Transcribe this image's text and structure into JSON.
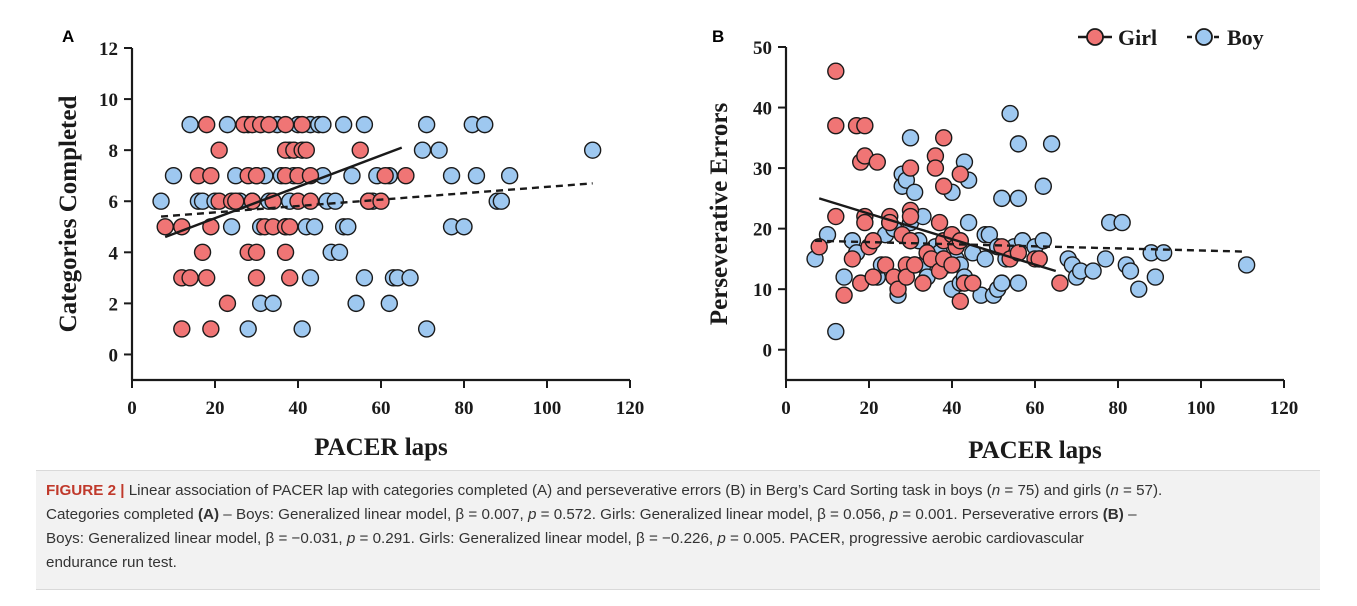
{
  "colors": {
    "girl": "#f07575",
    "boy": "#9ec8f0",
    "stroke": "#1a1a1a",
    "caption_prefix": "#c0392b"
  },
  "legend": {
    "girl_label": "Girl",
    "boy_label": "Boy"
  },
  "caption": {
    "prefix": "FIGURE 2 |",
    "seg1": " Linear association of PACER lap with categories completed (A) and perseverative errors (B) in Berg’s Card Sorting task in boys (",
    "n_boys_var": "n",
    "n_boys_val": " = 75) and girls (",
    "n_girls_var": "n",
    "n_girls_val": " = 57).",
    "seg2": "Categories completed ",
    "seg2_bold": "(A)",
    "seg3": " – Boys: Generalized linear model, β = 0.007, ",
    "p1": "p",
    "seg4": " = 0.572. Girls: Generalized linear model, β = 0.056, ",
    "p2": "p",
    "seg5": " = 0.001. Perseverative errors ",
    "seg5_bold": "(B)",
    "seg6": " –",
    "seg7": "Boys: Generalized linear model, β = −0.031, ",
    "p3": "p",
    "seg8": " = 0.291. Girls: Generalized linear model, β = −0.226, ",
    "p4": "p",
    "seg9": " = 0.005. PACER, progressive aerobic cardiovascular",
    "seg10": "endurance run test."
  },
  "chart_data": [
    {
      "type": "scatter",
      "panel_label": "A",
      "xlabel": "PACER laps",
      "ylabel": "Categories Completed",
      "xlim": [
        0,
        120
      ],
      "ylim": [
        -1,
        12
      ],
      "xticks": [
        "0",
        "20",
        "40",
        "60",
        "80",
        "100",
        "120"
      ],
      "yticks": [
        "0",
        "2",
        "4",
        "6",
        "8",
        "10",
        "12"
      ],
      "series": [
        {
          "name": "Boy",
          "trend": "dashed",
          "trend_line": [
            [
              7,
              5.4
            ],
            [
              111,
              6.7
            ]
          ],
          "points": [
            [
              7,
              6
            ],
            [
              10,
              7
            ],
            [
              14,
              9
            ],
            [
              16,
              6
            ],
            [
              17,
              6
            ],
            [
              20,
              6
            ],
            [
              23,
              9
            ],
            [
              24,
              5
            ],
            [
              25,
              7
            ],
            [
              26,
              6
            ],
            [
              28,
              1
            ],
            [
              28,
              9
            ],
            [
              29,
              6
            ],
            [
              30,
              7
            ],
            [
              31,
              5
            ],
            [
              31,
              2
            ],
            [
              32,
              7
            ],
            [
              33,
              6
            ],
            [
              34,
              2
            ],
            [
              35,
              9
            ],
            [
              36,
              7
            ],
            [
              37,
              5
            ],
            [
              38,
              8
            ],
            [
              38,
              6
            ],
            [
              39,
              7
            ],
            [
              40,
              9
            ],
            [
              41,
              1
            ],
            [
              42,
              5
            ],
            [
              43,
              3
            ],
            [
              43,
              9
            ],
            [
              44,
              5
            ],
            [
              45,
              9
            ],
            [
              46,
              7
            ],
            [
              46,
              9
            ],
            [
              47,
              6
            ],
            [
              48,
              4
            ],
            [
              49,
              6
            ],
            [
              50,
              4
            ],
            [
              51,
              9
            ],
            [
              51,
              5
            ],
            [
              52,
              5
            ],
            [
              53,
              7
            ],
            [
              54,
              2
            ],
            [
              56,
              9
            ],
            [
              56,
              3
            ],
            [
              57,
              6
            ],
            [
              58,
              6
            ],
            [
              59,
              7
            ],
            [
              62,
              2
            ],
            [
              62,
              7
            ],
            [
              63,
              3
            ],
            [
              64,
              3
            ],
            [
              67,
              3
            ],
            [
              70,
              8
            ],
            [
              71,
              9
            ],
            [
              71,
              1
            ],
            [
              74,
              8
            ],
            [
              77,
              7
            ],
            [
              77,
              5
            ],
            [
              80,
              5
            ],
            [
              82,
              9
            ],
            [
              83,
              7
            ],
            [
              85,
              9
            ],
            [
              88,
              6
            ],
            [
              89,
              6
            ],
            [
              91,
              7
            ],
            [
              111,
              8
            ]
          ]
        },
        {
          "name": "Girl",
          "trend": "solid",
          "trend_line": [
            [
              8,
              4.6
            ],
            [
              65,
              8.1
            ]
          ],
          "points": [
            [
              8,
              5
            ],
            [
              12,
              1
            ],
            [
              12,
              3
            ],
            [
              12,
              5
            ],
            [
              14,
              3
            ],
            [
              16,
              7
            ],
            [
              17,
              4
            ],
            [
              18,
              9
            ],
            [
              18,
              3
            ],
            [
              19,
              5
            ],
            [
              19,
              1
            ],
            [
              19,
              7
            ],
            [
              21,
              8
            ],
            [
              21,
              6
            ],
            [
              23,
              2
            ],
            [
              24,
              6
            ],
            [
              25,
              6
            ],
            [
              27,
              9
            ],
            [
              28,
              7
            ],
            [
              28,
              4
            ],
            [
              29,
              6
            ],
            [
              29,
              9
            ],
            [
              30,
              4
            ],
            [
              30,
              3
            ],
            [
              30,
              7
            ],
            [
              31,
              9
            ],
            [
              32,
              5
            ],
            [
              33,
              9
            ],
            [
              34,
              6
            ],
            [
              34,
              5
            ],
            [
              37,
              9
            ],
            [
              37,
              8
            ],
            [
              37,
              7
            ],
            [
              37,
              5
            ],
            [
              37,
              4
            ],
            [
              38,
              3
            ],
            [
              38,
              5
            ],
            [
              39,
              8
            ],
            [
              40,
              6
            ],
            [
              40,
              7
            ],
            [
              41,
              9
            ],
            [
              41,
              8
            ],
            [
              42,
              8
            ],
            [
              43,
              7
            ],
            [
              43,
              6
            ],
            [
              55,
              8
            ],
            [
              57,
              6
            ],
            [
              60,
              6
            ],
            [
              61,
              7
            ],
            [
              66,
              7
            ]
          ]
        }
      ]
    },
    {
      "type": "scatter",
      "panel_label": "B",
      "xlabel": "PACER laps",
      "ylabel": "Perseverative Errors",
      "xlim": [
        0,
        120
      ],
      "ylim": [
        -5,
        50
      ],
      "xticks": [
        "0",
        "20",
        "40",
        "60",
        "80",
        "100",
        "120"
      ],
      "yticks": [
        "0",
        "10",
        "20",
        "30",
        "40",
        "50"
      ],
      "series": [
        {
          "name": "Boy",
          "trend": "dashed",
          "trend_line": [
            [
              7,
              18
            ],
            [
              111,
              16.2
            ]
          ],
          "points": [
            [
              7,
              15
            ],
            [
              10,
              19
            ],
            [
              12,
              3
            ],
            [
              14,
              12
            ],
            [
              16,
              18
            ],
            [
              17,
              16
            ],
            [
              22,
              12
            ],
            [
              23,
              14
            ],
            [
              24,
              19
            ],
            [
              25,
              21
            ],
            [
              26,
              20
            ],
            [
              27,
              9
            ],
            [
              28,
              29
            ],
            [
              28,
              27
            ],
            [
              29,
              28
            ],
            [
              30,
              35
            ],
            [
              30,
              21
            ],
            [
              31,
              26
            ],
            [
              31,
              14
            ],
            [
              32,
              18
            ],
            [
              33,
              22
            ],
            [
              33,
              14
            ],
            [
              34,
              12
            ],
            [
              35,
              15
            ],
            [
              36,
              17
            ],
            [
              37,
              16
            ],
            [
              38,
              15
            ],
            [
              39,
              14
            ],
            [
              40,
              10
            ],
            [
              40,
              26
            ],
            [
              41,
              18
            ],
            [
              41,
              15
            ],
            [
              42,
              14
            ],
            [
              42,
              11
            ],
            [
              43,
              31
            ],
            [
              43,
              12
            ],
            [
              44,
              28
            ],
            [
              44,
              21
            ],
            [
              45,
              16
            ],
            [
              47,
              9
            ],
            [
              48,
              15
            ],
            [
              48,
              19
            ],
            [
              49,
              19
            ],
            [
              50,
              9
            ],
            [
              51,
              17
            ],
            [
              51,
              10
            ],
            [
              52,
              25
            ],
            [
              52,
              11
            ],
            [
              53,
              15
            ],
            [
              54,
              39
            ],
            [
              55,
              17
            ],
            [
              56,
              34
            ],
            [
              56,
              25
            ],
            [
              56,
              11
            ],
            [
              57,
              18
            ],
            [
              60,
              17
            ],
            [
              61,
              15
            ],
            [
              62,
              27
            ],
            [
              62,
              18
            ],
            [
              64,
              34
            ],
            [
              68,
              15
            ],
            [
              69,
              14
            ],
            [
              70,
              12
            ],
            [
              71,
              13
            ],
            [
              74,
              13
            ],
            [
              77,
              15
            ],
            [
              78,
              21
            ],
            [
              81,
              21
            ],
            [
              82,
              14
            ],
            [
              83,
              13
            ],
            [
              85,
              10
            ],
            [
              88,
              16
            ],
            [
              89,
              12
            ],
            [
              91,
              16
            ],
            [
              111,
              14
            ]
          ]
        },
        {
          "name": "Girl",
          "trend": "solid",
          "trend_line": [
            [
              8,
              25
            ],
            [
              65,
              13
            ]
          ],
          "points": [
            [
              8,
              17
            ],
            [
              12,
              46
            ],
            [
              12,
              37
            ],
            [
              12,
              22
            ],
            [
              14,
              9
            ],
            [
              16,
              15
            ],
            [
              17,
              37
            ],
            [
              18,
              31
            ],
            [
              18,
              11
            ],
            [
              19,
              37
            ],
            [
              19,
              32
            ],
            [
              19,
              22
            ],
            [
              19,
              21
            ],
            [
              20,
              17
            ],
            [
              21,
              18
            ],
            [
              21,
              12
            ],
            [
              22,
              31
            ],
            [
              24,
              14
            ],
            [
              25,
              22
            ],
            [
              25,
              21
            ],
            [
              26,
              12
            ],
            [
              27,
              10
            ],
            [
              28,
              19
            ],
            [
              29,
              14
            ],
            [
              29,
              12
            ],
            [
              30,
              30
            ],
            [
              30,
              23
            ],
            [
              30,
              22
            ],
            [
              30,
              18
            ],
            [
              31,
              14
            ],
            [
              33,
              11
            ],
            [
              34,
              16
            ],
            [
              35,
              15
            ],
            [
              36,
              32
            ],
            [
              36,
              30
            ],
            [
              37,
              21
            ],
            [
              37,
              13
            ],
            [
              38,
              35
            ],
            [
              38,
              27
            ],
            [
              38,
              18
            ],
            [
              38,
              15
            ],
            [
              40,
              19
            ],
            [
              40,
              14
            ],
            [
              41,
              17
            ],
            [
              42,
              18
            ],
            [
              42,
              29
            ],
            [
              42,
              8
            ],
            [
              43,
              11
            ],
            [
              45,
              11
            ],
            [
              52,
              17
            ],
            [
              54,
              15
            ],
            [
              56,
              16
            ],
            [
              60,
              15
            ],
            [
              61,
              15
            ],
            [
              66,
              11
            ]
          ]
        }
      ]
    }
  ]
}
